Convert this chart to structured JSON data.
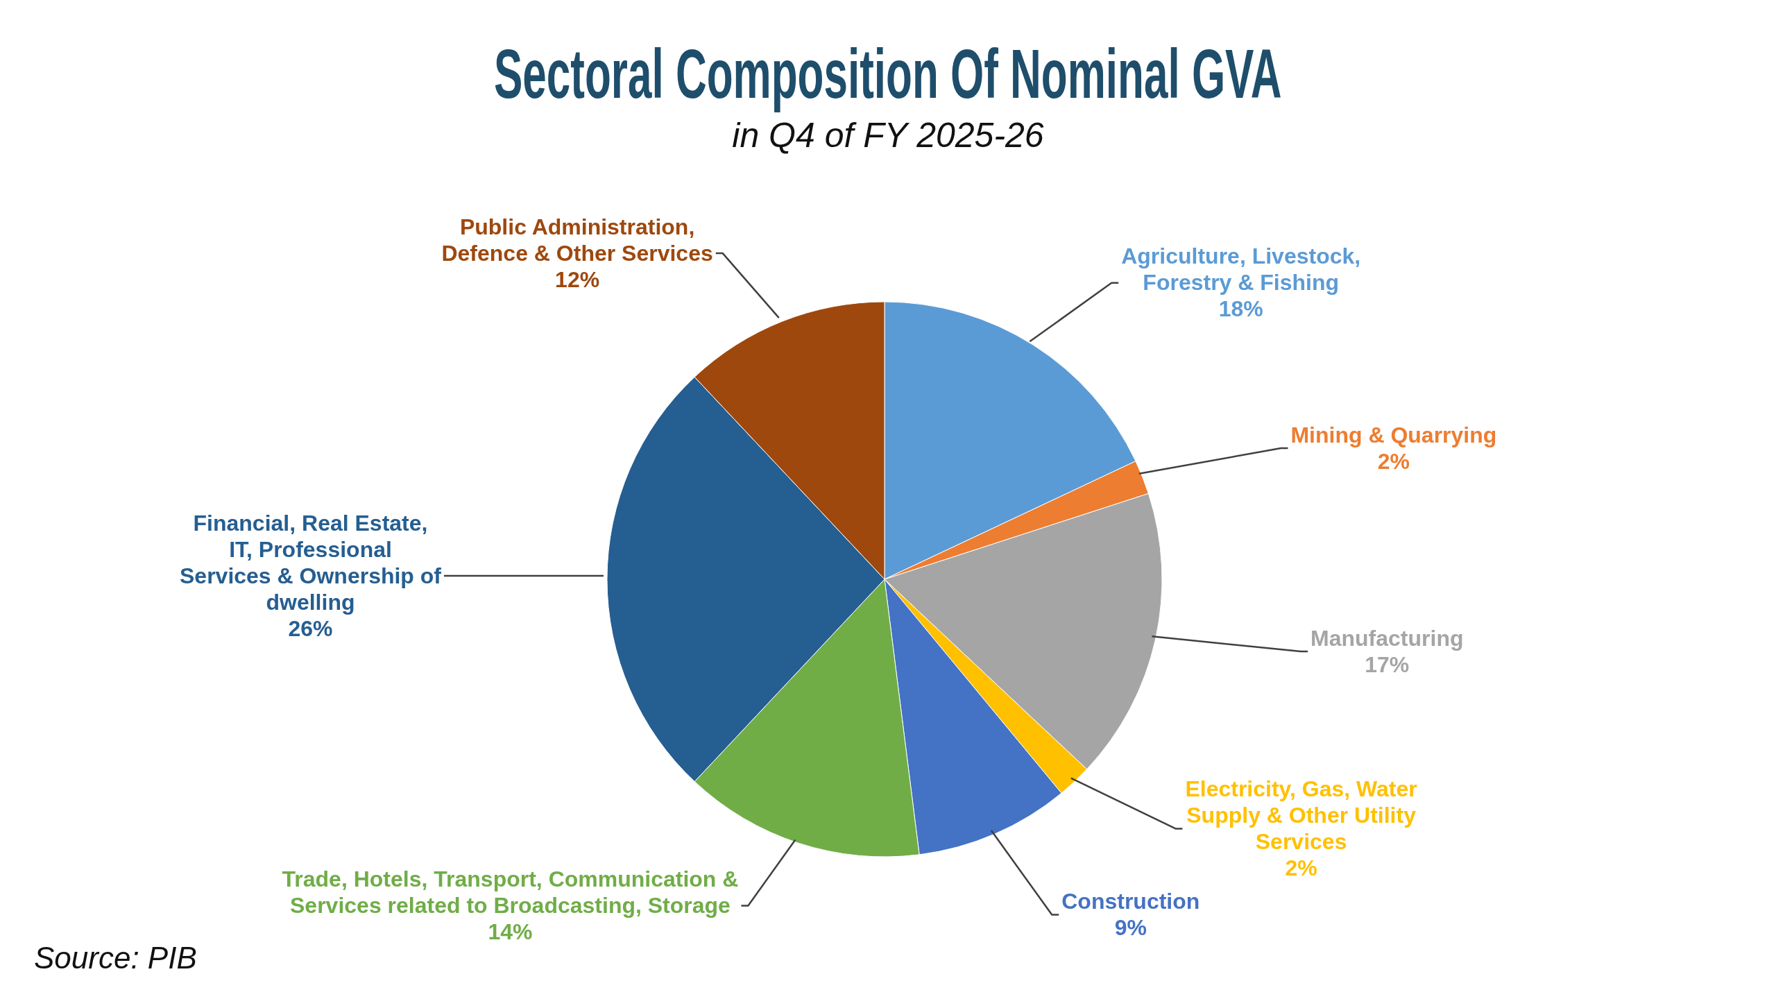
{
  "chart_data": {
    "type": "pie",
    "title": "Sectoral Composition Of Nominal GVA",
    "subtitle": "in Q4 of FY 2025-26",
    "categories": [
      "Agriculture, Livestock, Forestry & Fishing",
      "Mining & Quarrying",
      "Manufacturing",
      "Electricity, Gas, Water Supply & Other Utility Services",
      "Construction",
      "Trade, Hotels, Transport, Communication & Services related to Broadcasting, Storage",
      "Financial, Real Estate, IT, Professional Services & Ownership of dwelling",
      "Public Administration, Defence & Other Services"
    ],
    "values": [
      18,
      2,
      17,
      2,
      9,
      14,
      26,
      12
    ],
    "colors": [
      "#5b9bd5",
      "#ed7d31",
      "#a5a5a5",
      "#ffc000",
      "#4472c4",
      "#70ad47",
      "#255e91",
      "#9e480e"
    ],
    "value_labels": [
      "18%",
      "2%",
      "17%",
      "2%",
      "9%",
      "14%",
      "26%",
      "12%"
    ],
    "annotations": [
      "Source: PIB"
    ]
  }
}
